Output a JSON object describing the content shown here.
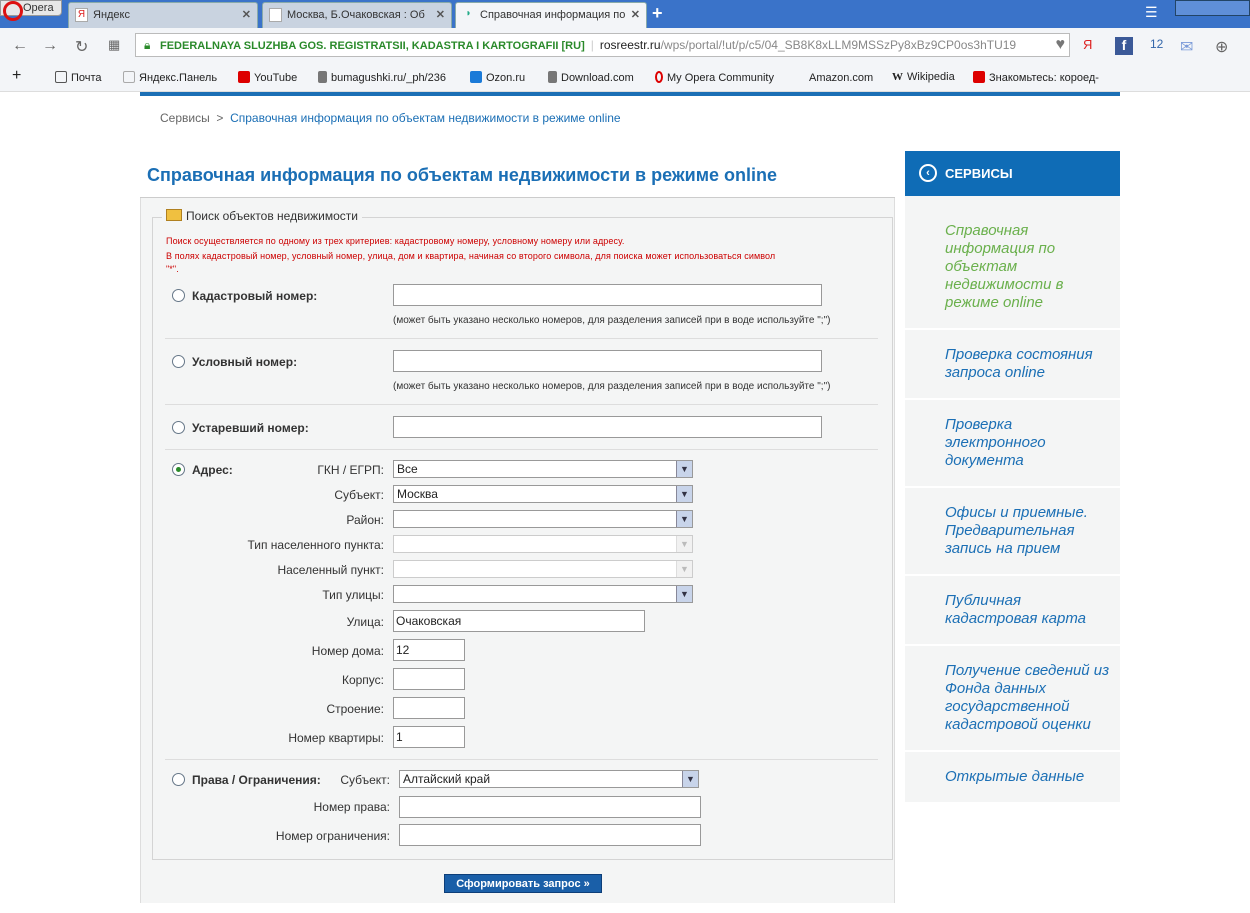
{
  "browser": {
    "opera_label": "Opera",
    "tabs": [
      {
        "label": "Яндекс"
      },
      {
        "label": "Москва, Б.Очаковская : Об"
      },
      {
        "label": "Справочная информация по"
      }
    ],
    "security_label": "FEDERALNAYA SLUZHBA GOS. REGISTRATSII, KADASTRA I KARTOGRAFII [RU]",
    "url_domain": "rosreestr.ru",
    "url_path": "/wps/portal/!ut/p/c5/04_SB8K8xLLM9MSSzPy8xBz9CP0os3hTU19",
    "bookmarks": [
      "Почта",
      "Яндекс.Панель",
      "YouTube",
      "bumagushki.ru/_ph/236",
      "Ozon.ru",
      "Download.com",
      "My Opera Community",
      "Amazon.com",
      "Wikipedia",
      "Знакомьтесь: короед-"
    ]
  },
  "breadcrumb": {
    "root": "Сервисы",
    "sep": ">",
    "current": "Справочная информация по объектам недвижимости в режиме online"
  },
  "page_title": "Справочная информация по объектам недвижимости в режиме online",
  "form": {
    "legend": "Поиск объектов недвижимости",
    "warning1": "Поиск осуществляется по одному из трех критериев: кадастровому номеру, условному номеру или адресу.",
    "warning2": "В полях кадастровый номер, условный номер, улица, дом и квартира, начиная со второго символа, для поиска может использоваться символ",
    "warning3": "\"*\".",
    "cadastral_label": "Кадастровый номер:",
    "cadastral_value": "",
    "hint": "(может быть указано несколько номеров, для разделения записей при в воде используйте \";\")",
    "conditional_label": "Условный номер:",
    "conditional_value": "",
    "obsolete_label": "Устаревший номер:",
    "obsolete_value": "",
    "address_label": "Адрес:",
    "address_selected": true,
    "gkn_label": "ГКН / ЕГРП:",
    "gkn_value": "Все",
    "subject_label": "Субъект:",
    "subject_value": "Москва",
    "district_label": "Район:",
    "district_value": "",
    "settlement_type_label": "Тип населенного пункта:",
    "settlement_type_value": "",
    "settlement_label": "Населенный пункт:",
    "settlement_value": "",
    "street_type_label": "Тип улицы:",
    "street_type_value": "",
    "street_label": "Улица:",
    "street_value": "Очаковская",
    "house_label": "Номер дома:",
    "house_value": "12",
    "building_label": "Корпус:",
    "building_value": "",
    "structure_label": "Строение:",
    "structure_value": "",
    "apartment_label": "Номер квартиры:",
    "apartment_value": "1",
    "rights_label": "Права / Ограничения:",
    "rights_subject_label": "Субъект:",
    "rights_subject_value": "Алтайский край",
    "right_number_label": "Номер права:",
    "right_number_value": "",
    "restriction_number_label": "Номер ограничения:",
    "restriction_number_value": "",
    "submit_label": "Сформировать запрос »"
  },
  "sidebar": {
    "header": "СЕРВИСЫ",
    "items": [
      {
        "label": "Справочная информация по объектам недвижимости в режиме online",
        "current": true
      },
      {
        "label": "Проверка состояния запроса online"
      },
      {
        "label": "Проверка электронного документа"
      },
      {
        "label": "Офисы и приемные. Предварительная запись на прием"
      },
      {
        "label": "Публичная кадастровая карта"
      },
      {
        "label": "Получение сведений из Фонда данных государственной кадастровой оценки"
      },
      {
        "label": "Открытые данные"
      }
    ]
  },
  "colors": {
    "brand": "#1b6fb5",
    "warning": "#cc0000",
    "current_item": "#6ab04c"
  }
}
